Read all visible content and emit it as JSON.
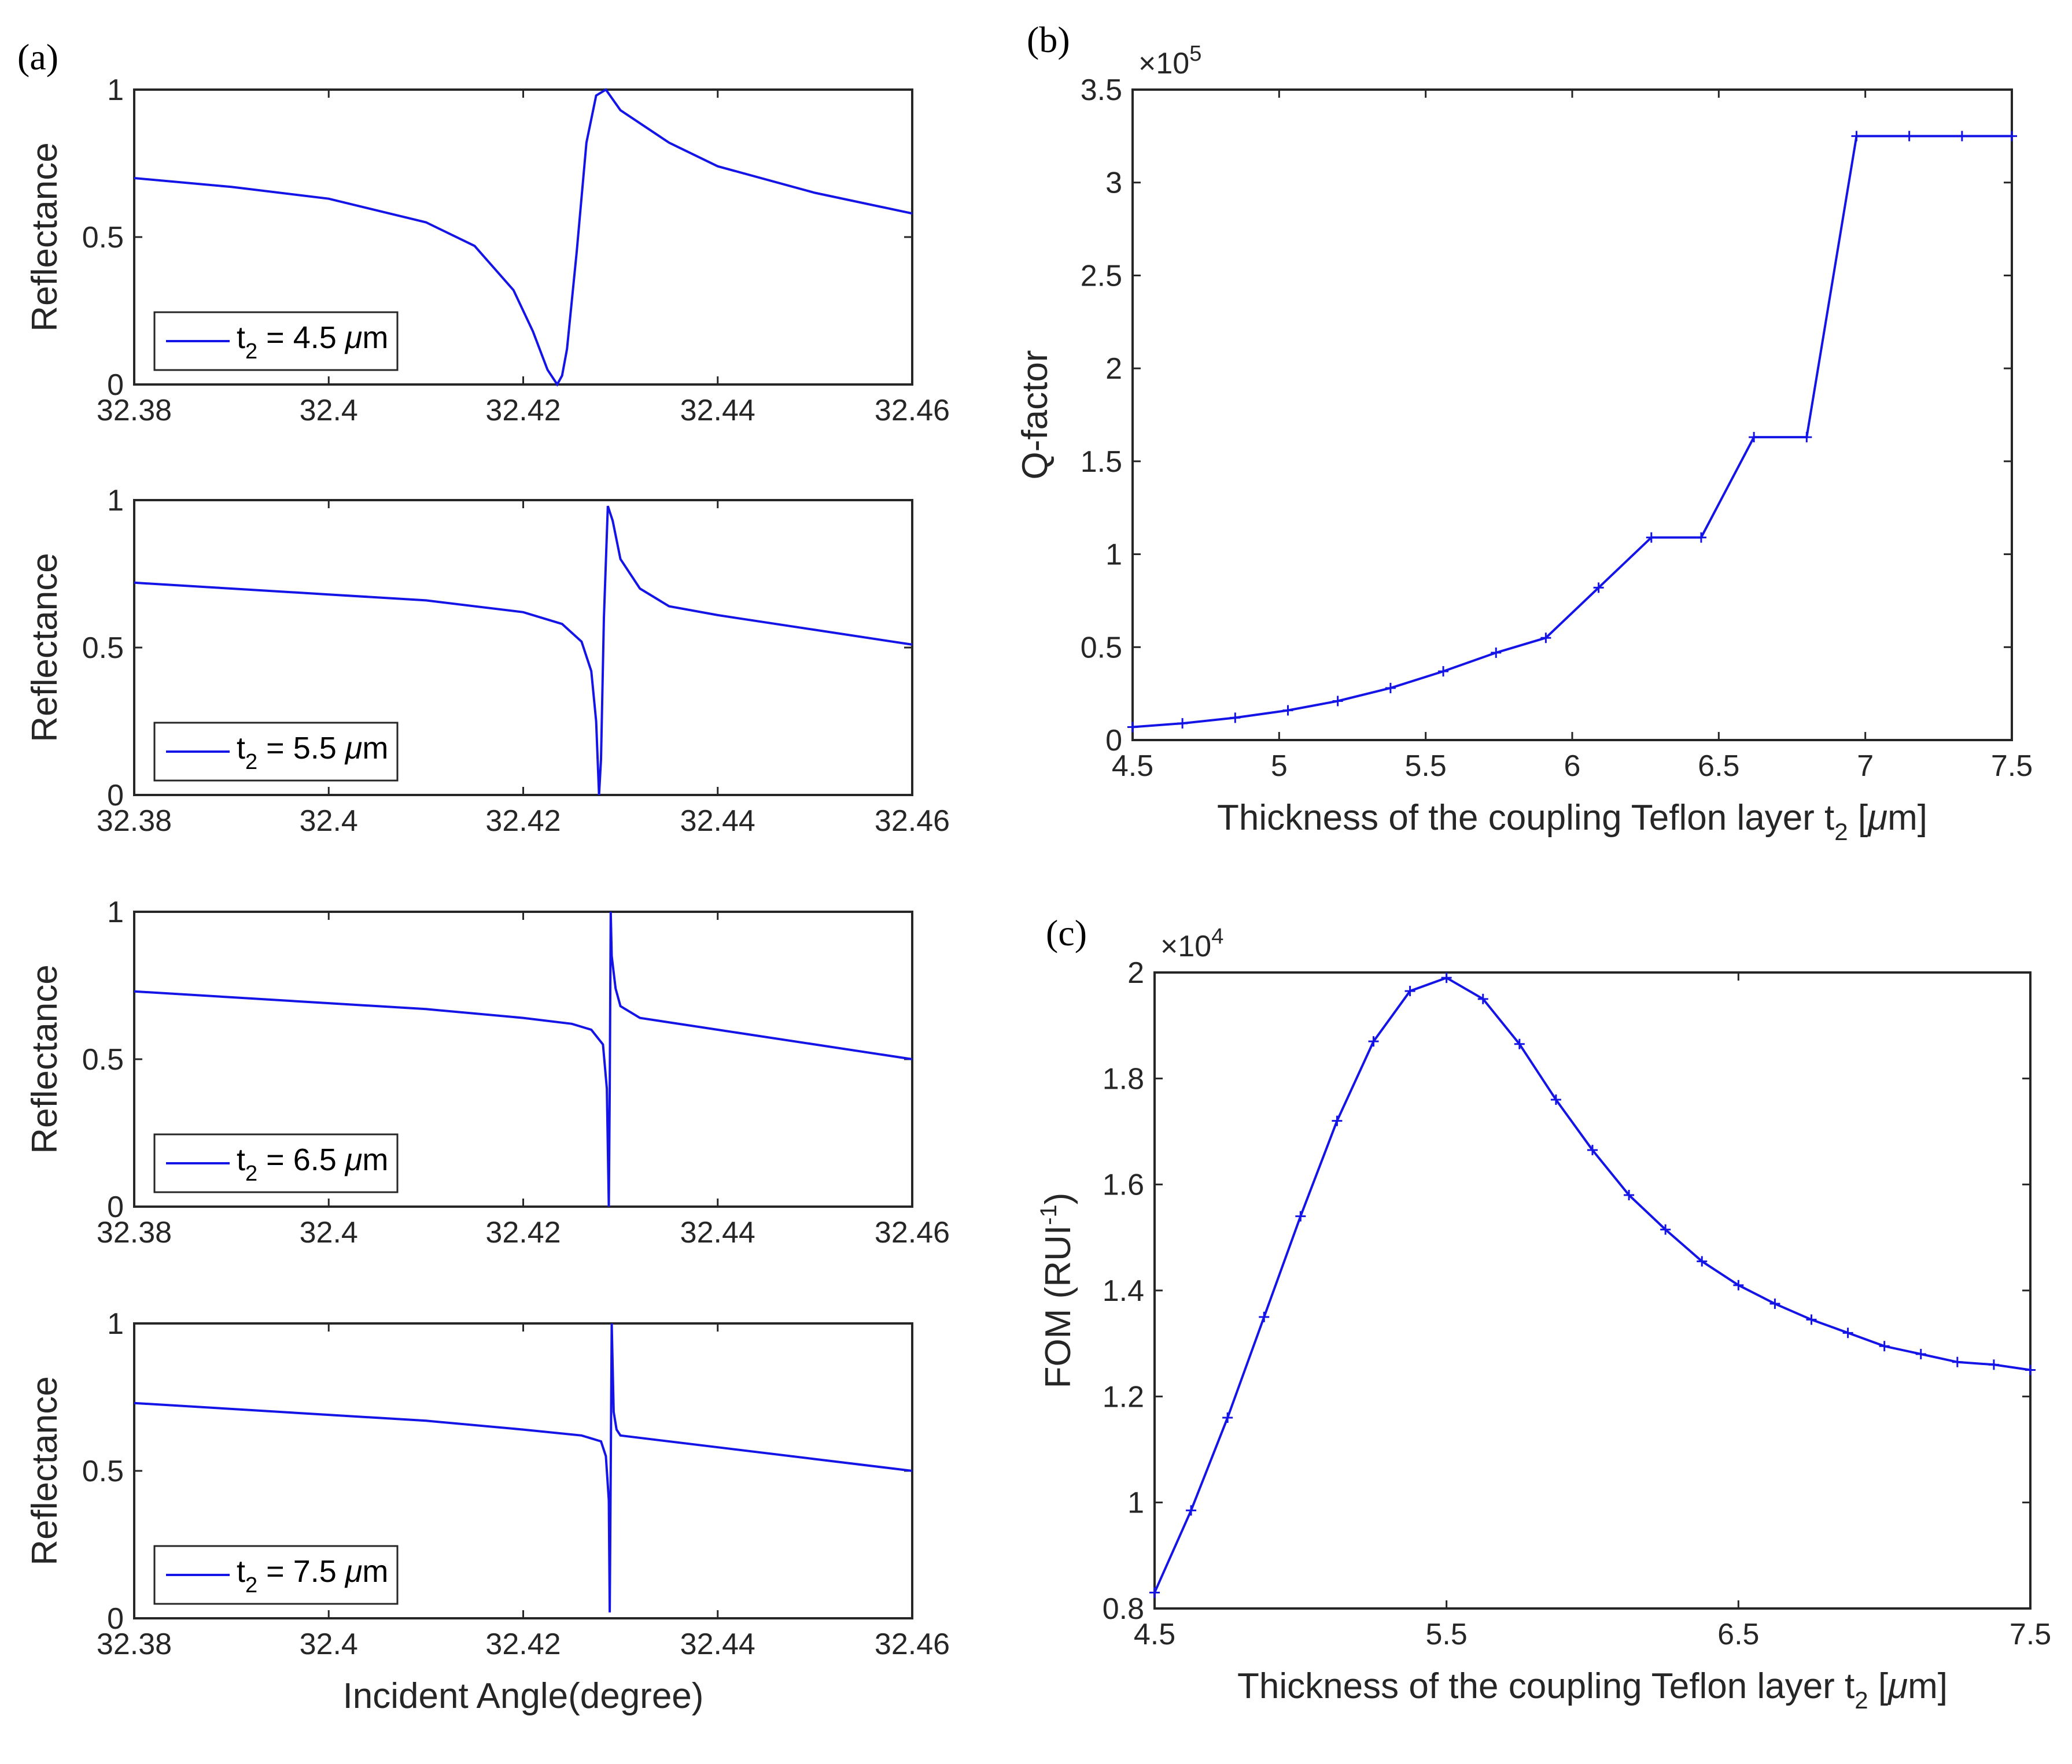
{
  "colors": {
    "series": "#1414e6",
    "axis": "#262626"
  },
  "panel_labels": {
    "a": "(a)",
    "b": "(b)",
    "c": "(c)"
  },
  "chart_data": [
    {
      "id": "a1",
      "type": "line",
      "xlabel": "",
      "ylabel": "Reflectance",
      "xlim": [
        32.38,
        32.46
      ],
      "ylim": [
        0,
        1
      ],
      "xticks": [
        "32.38",
        "32.4",
        "32.42",
        "32.44",
        "32.46"
      ],
      "yticks": [
        "0",
        "0.5",
        "1"
      ],
      "legend": {
        "sub_base": "t",
        "sub": "2",
        "text": " = 4.5 ",
        "unit_mu": "μ",
        "unit": "m",
        "placement": "bottom-left"
      },
      "x": [
        32.38,
        32.39,
        32.4,
        32.41,
        32.415,
        32.419,
        32.421,
        32.4225,
        32.4235,
        32.424,
        32.4245,
        32.4255,
        32.4265,
        32.4275,
        32.4285,
        32.43,
        32.435,
        32.44,
        32.45,
        32.46
      ],
      "y": [
        0.7,
        0.67,
        0.63,
        0.55,
        0.47,
        0.32,
        0.18,
        0.05,
        0.0,
        0.03,
        0.12,
        0.45,
        0.82,
        0.98,
        1.0,
        0.93,
        0.82,
        0.74,
        0.65,
        0.58
      ]
    },
    {
      "id": "a2",
      "type": "line",
      "xlabel": "",
      "ylabel": "Reflectance",
      "xlim": [
        32.38,
        32.46
      ],
      "ylim": [
        0,
        1
      ],
      "xticks": [
        "32.38",
        "32.4",
        "32.42",
        "32.44",
        "32.46"
      ],
      "yticks": [
        "0",
        "0.5",
        "1"
      ],
      "legend": {
        "sub_base": "t",
        "sub": "2",
        "text": " = 5.5 ",
        "unit_mu": "μ",
        "unit": "m",
        "placement": "bottom-left"
      },
      "x": [
        32.38,
        32.39,
        32.4,
        32.41,
        32.42,
        32.424,
        32.426,
        32.427,
        32.4275,
        32.4278,
        32.428,
        32.4283,
        32.4287,
        32.4292,
        32.43,
        32.432,
        32.435,
        32.44,
        32.45,
        32.46
      ],
      "y": [
        0.72,
        0.7,
        0.68,
        0.66,
        0.62,
        0.58,
        0.52,
        0.42,
        0.25,
        0.0,
        0.12,
        0.6,
        0.98,
        0.93,
        0.8,
        0.7,
        0.64,
        0.61,
        0.56,
        0.51
      ]
    },
    {
      "id": "a3",
      "type": "line",
      "xlabel": "",
      "ylabel": "Reflectance",
      "xlim": [
        32.38,
        32.46
      ],
      "ylim": [
        0,
        1
      ],
      "xticks": [
        "32.38",
        "32.4",
        "32.42",
        "32.44",
        "32.46"
      ],
      "yticks": [
        "0",
        "0.5",
        "1"
      ],
      "legend": {
        "sub_base": "t",
        "sub": "2",
        "text": " = 6.5 ",
        "unit_mu": "μ",
        "unit": "m",
        "placement": "bottom-left"
      },
      "x": [
        32.38,
        32.39,
        32.4,
        32.41,
        32.42,
        32.425,
        32.427,
        32.4282,
        32.4286,
        32.4288,
        32.4289,
        32.429,
        32.4291,
        32.4295,
        32.43,
        32.432,
        32.44,
        32.45,
        32.46
      ],
      "y": [
        0.73,
        0.71,
        0.69,
        0.67,
        0.64,
        0.62,
        0.6,
        0.55,
        0.4,
        0.0,
        0.4,
        1.0,
        0.85,
        0.74,
        0.68,
        0.64,
        0.6,
        0.55,
        0.5
      ]
    },
    {
      "id": "a4",
      "type": "line",
      "xlabel": "Incident Angle(degree)",
      "ylabel": "Reflectance",
      "xlim": [
        32.38,
        32.46
      ],
      "ylim": [
        0,
        1
      ],
      "xticks": [
        "32.38",
        "32.4",
        "32.42",
        "32.44",
        "32.46"
      ],
      "yticks": [
        "0",
        "0.5",
        "1"
      ],
      "legend": {
        "sub_base": "t",
        "sub": "2",
        "text": " = 7.5 ",
        "unit_mu": "μ",
        "unit": "m",
        "placement": "bottom-left"
      },
      "x": [
        32.38,
        32.39,
        32.4,
        32.41,
        32.42,
        32.426,
        32.428,
        32.4285,
        32.4288,
        32.4289,
        32.429,
        32.4291,
        32.4293,
        32.4296,
        32.43,
        32.44,
        32.45,
        32.46
      ],
      "y": [
        0.73,
        0.71,
        0.69,
        0.67,
        0.64,
        0.62,
        0.6,
        0.55,
        0.4,
        0.02,
        0.5,
        1.0,
        0.7,
        0.64,
        0.62,
        0.58,
        0.54,
        0.5
      ]
    },
    {
      "id": "b",
      "type": "line",
      "xlabel": "Thickness of the coupling Teflon layer t",
      "xlabel_sub": "2",
      "xlabel_unit_pre": " [",
      "xlabel_mu": "μ",
      "xlabel_unit_post": "m]",
      "ylabel": "Q-factor",
      "xlim": [
        4.5,
        7.5
      ],
      "ylim": [
        0,
        3.5
      ],
      "exponent_prefix": "×10",
      "exponent": "5",
      "xticks": [
        "4.5",
        "5",
        "5.5",
        "6",
        "6.5",
        "7",
        "7.5"
      ],
      "yticks": [
        "0",
        "0.5",
        "1",
        "1.5",
        "2",
        "2.5",
        "3",
        "3.5"
      ],
      "x": [
        4.5,
        4.67,
        4.85,
        5.03,
        5.2,
        5.38,
        5.56,
        5.74,
        5.91,
        6.09,
        6.27,
        6.44,
        6.62,
        6.8,
        6.97,
        7.15,
        7.33,
        7.5
      ],
      "y": [
        0.07,
        0.09,
        0.12,
        0.16,
        0.21,
        0.28,
        0.37,
        0.47,
        0.55,
        0.82,
        1.09,
        1.09,
        1.63,
        1.63,
        3.25,
        3.25,
        3.25,
        3.25
      ]
    },
    {
      "id": "c",
      "type": "line",
      "xlabel": "Thickness of the coupling Teflon layer t",
      "xlabel_sub": "2",
      "xlabel_unit_pre": " [",
      "xlabel_mu": "μ",
      "xlabel_unit_post": "m]",
      "ylabel": "FOM (RUI",
      "ylabel_sup": "-1",
      "ylabel_post": ")",
      "xlim": [
        4.5,
        7.5
      ],
      "ylim": [
        0.8,
        2.0
      ],
      "exponent_prefix": "×10",
      "exponent": "4",
      "xticks": [
        "4.5",
        "5.5",
        "6.5",
        "7.5"
      ],
      "yticks": [
        "0.8",
        "1",
        "1.2",
        "1.4",
        "1.6",
        "1.8",
        "2"
      ],
      "x": [
        4.5,
        4.625,
        4.75,
        4.875,
        5.0,
        5.125,
        5.25,
        5.375,
        5.5,
        5.625,
        5.75,
        5.875,
        6.0,
        6.125,
        6.25,
        6.375,
        6.5,
        6.625,
        6.75,
        6.875,
        7.0,
        7.125,
        7.25,
        7.375,
        7.5
      ],
      "y": [
        0.83,
        0.985,
        1.16,
        1.35,
        1.54,
        1.72,
        1.87,
        1.965,
        1.99,
        1.95,
        1.865,
        1.76,
        1.665,
        1.58,
        1.515,
        1.455,
        1.41,
        1.375,
        1.345,
        1.32,
        1.295,
        1.28,
        1.265,
        1.26,
        1.25
      ]
    }
  ]
}
